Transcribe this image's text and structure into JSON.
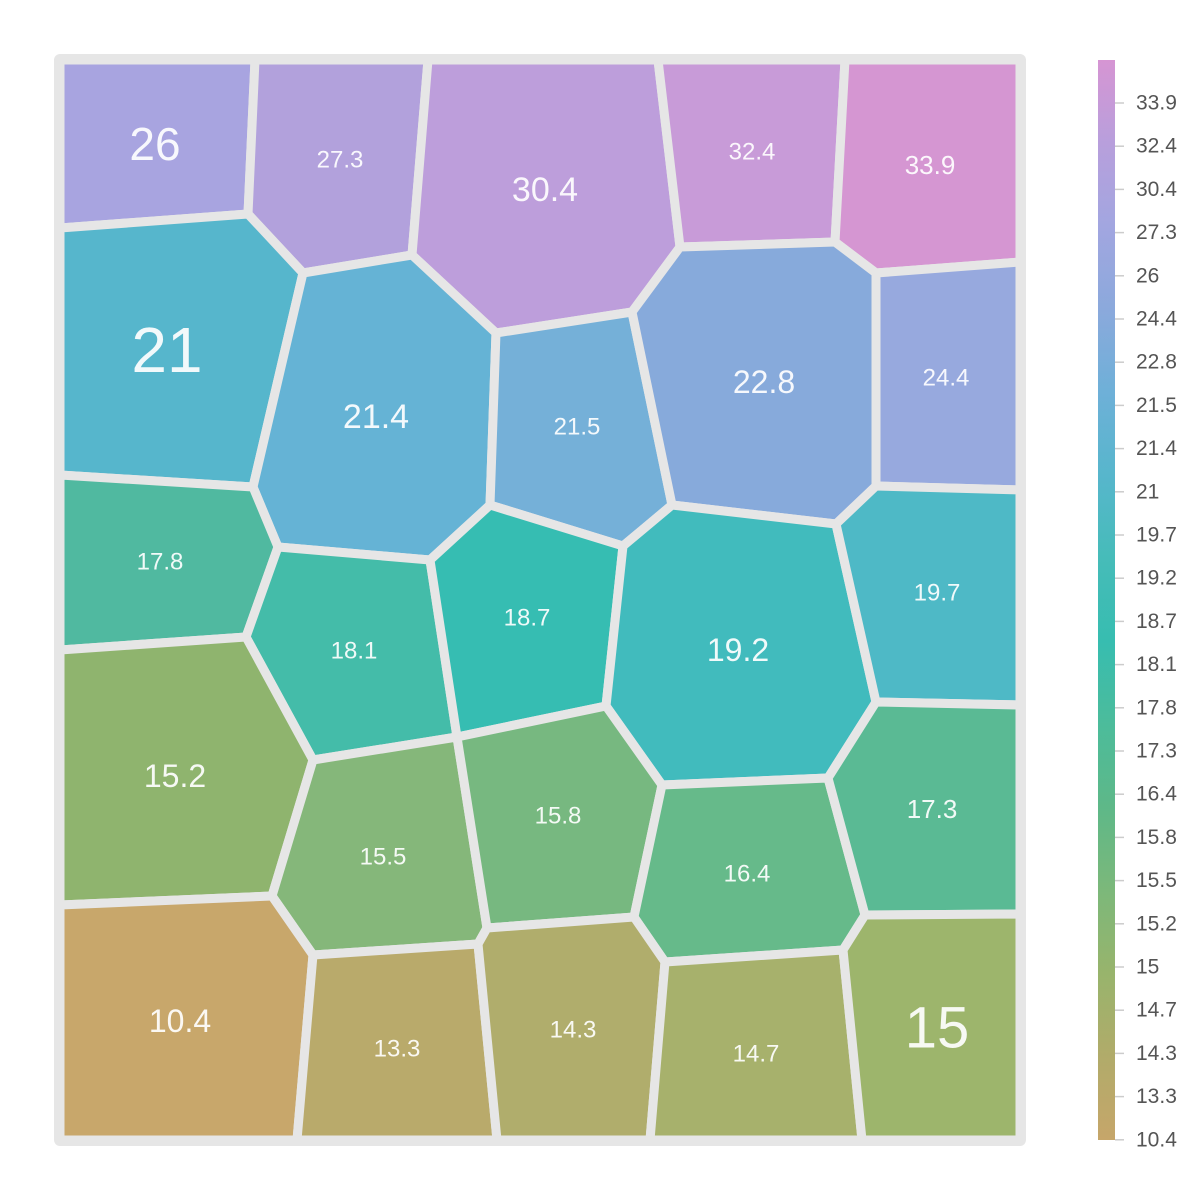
{
  "chart_data": {
    "type": "voronoi-treemap",
    "cells": [
      {
        "label": "26",
        "value": 26
      },
      {
        "label": "27.3",
        "value": 27.3
      },
      {
        "label": "30.4",
        "value": 30.4
      },
      {
        "label": "32.4",
        "value": 32.4
      },
      {
        "label": "33.9",
        "value": 33.9
      },
      {
        "label": "21",
        "value": 21
      },
      {
        "label": "21.4",
        "value": 21.4
      },
      {
        "label": "21.5",
        "value": 21.5
      },
      {
        "label": "22.8",
        "value": 22.8
      },
      {
        "label": "24.4",
        "value": 24.4
      },
      {
        "label": "17.8",
        "value": 17.8
      },
      {
        "label": "18.1",
        "value": 18.1
      },
      {
        "label": "18.7",
        "value": 18.7
      },
      {
        "label": "19.2",
        "value": 19.2
      },
      {
        "label": "19.7",
        "value": 19.7
      },
      {
        "label": "15.2",
        "value": 15.2
      },
      {
        "label": "15.5",
        "value": 15.5
      },
      {
        "label": "15.8",
        "value": 15.8
      },
      {
        "label": "16.4",
        "value": 16.4
      },
      {
        "label": "17.3",
        "value": 17.3
      },
      {
        "label": "10.4",
        "value": 10.4
      },
      {
        "label": "13.3",
        "value": 13.3
      },
      {
        "label": "14.3",
        "value": 14.3
      },
      {
        "label": "14.7",
        "value": 14.7
      },
      {
        "label": "15",
        "value": 15
      }
    ],
    "legend": {
      "placement": "right",
      "ticks": [
        "33.9",
        "32.4",
        "30.4",
        "27.3",
        "26",
        "24.4",
        "22.8",
        "21.5",
        "21.4",
        "21",
        "19.7",
        "19.2",
        "18.7",
        "18.1",
        "17.8",
        "17.3",
        "16.4",
        "15.8",
        "15.5",
        "15.2",
        "15",
        "14.7",
        "14.3",
        "13.3",
        "10.4"
      ],
      "color_stops": [
        "#d695d3",
        "#b89fdc",
        "#a2a6e0",
        "#8ba9dc",
        "#6eb0d8",
        "#57b6cc",
        "#46bcb9",
        "#37bdb0",
        "#4cbc9b",
        "#5eb888",
        "#7cb87a",
        "#98b46c",
        "#b1ab6a",
        "#c6a66a"
      ]
    }
  }
}
